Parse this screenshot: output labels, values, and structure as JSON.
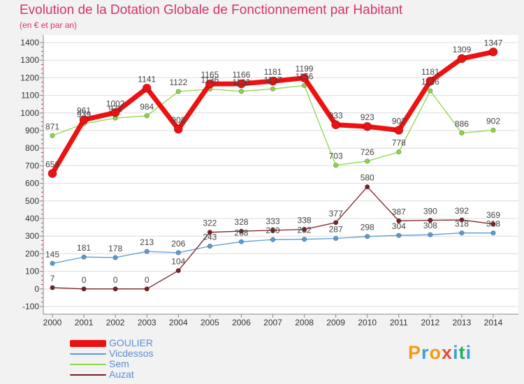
{
  "chart_data": {
    "type": "line",
    "title": "Evolution de la Dotation Globale de Fonctionnement par Habitant",
    "subtitle": "(en € et par an)",
    "xlabel": "",
    "ylabel": "",
    "categories": [
      "2000",
      "2001",
      "2002",
      "2003",
      "2004",
      "2005",
      "2006",
      "2007",
      "2008",
      "2009",
      "2010",
      "2011",
      "2012",
      "2013",
      "2014"
    ],
    "ylim": [
      -100,
      1400
    ],
    "yticks": [
      -100,
      0,
      100,
      200,
      300,
      400,
      500,
      600,
      700,
      800,
      900,
      1000,
      1100,
      1200,
      1300,
      1400
    ],
    "grid": "horizontal",
    "legend_position": "bottom-left",
    "series": [
      {
        "name": "GOULIER",
        "color": "#ee1111",
        "values": [
          656,
          961,
          1002,
          1141,
          908,
          1165,
          1166,
          1181,
          1199,
          933,
          923,
          902,
          1181,
          1309,
          1347
        ]
      },
      {
        "name": "Vicdessos",
        "color": "#5b9bd5",
        "values": [
          145,
          181,
          178,
          213,
          206,
          243,
          268,
          280,
          282,
          287,
          298,
          304,
          308,
          318,
          318
        ]
      },
      {
        "name": "Sem",
        "color": "#8cd648",
        "values": [
          871,
          939,
          971,
          984,
          1122,
          1136,
          1123,
          1137,
          1156,
          703,
          726,
          778,
          1126,
          886,
          902
        ]
      },
      {
        "name": "Auzat",
        "color": "#7a1f23",
        "values": [
          7,
          0,
          0,
          0,
          104,
          322,
          328,
          333,
          338,
          377,
          580,
          387,
          390,
          392,
          369
        ]
      }
    ]
  },
  "logo": {
    "letters": [
      "P",
      "r",
      "o",
      "x",
      "i",
      "t",
      "i"
    ],
    "colors": [
      "#f39c12",
      "#3aa0d8",
      "#f39c12",
      "#e74c3c",
      "#3aa0d8",
      "#27ae60",
      "#3aa0d8"
    ]
  }
}
